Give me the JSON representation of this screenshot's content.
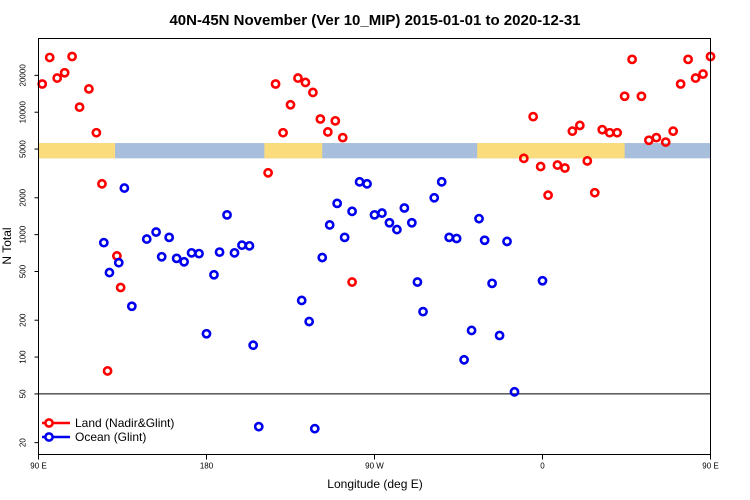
{
  "chart_data": {
    "type": "scatter",
    "title": "40N-45N November (Ver 10_MIP)   2015-01-01 to 2020-12-31",
    "xlabel": "Longitude (deg E)",
    "ylabel": "N Total",
    "y_scale": "log",
    "xlim": [
      90,
      450
    ],
    "ylim": [
      16,
      40000
    ],
    "x_ticks": [
      {
        "value": 90,
        "label": "90 E"
      },
      {
        "value": 180,
        "label": "180"
      },
      {
        "value": 270,
        "label": "90 W"
      },
      {
        "value": 360,
        "label": "0"
      },
      {
        "value": 450,
        "label": "90 E"
      },
      {
        "value": 540,
        "label": "180"
      }
    ],
    "y_ticks": [
      {
        "value": 20,
        "label": "20"
      },
      {
        "value": 50,
        "label": "50"
      },
      {
        "value": 100,
        "label": "100"
      },
      {
        "value": 200,
        "label": "200"
      },
      {
        "value": 500,
        "label": "500"
      },
      {
        "value": 1000,
        "label": "1000"
      },
      {
        "value": 2000,
        "label": "2000"
      },
      {
        "value": 5000,
        "label": "5000"
      },
      {
        "value": 10000,
        "label": "10000"
      },
      {
        "value": 20000,
        "label": "20000"
      }
    ],
    "hline": 50,
    "land_mask_band": {
      "y_range": [
        4200,
        5600
      ],
      "ocean_color": "#a7bedc",
      "land_color": "#fadc7c",
      "land_segments": [
        [
          90,
          131
        ],
        [
          211,
          242
        ],
        [
          325,
          404
        ],
        [
          470,
          489
        ]
      ]
    },
    "legend_position": "bottom-left",
    "series": [
      {
        "name": "Land (Nadir&Glint)",
        "color": "#ff0000",
        "points": [
          [
            92,
            17000
          ],
          [
            96,
            28000
          ],
          [
            100,
            19000
          ],
          [
            104,
            21000
          ],
          [
            108,
            28500
          ],
          [
            112,
            11000
          ],
          [
            117,
            15500
          ],
          [
            121,
            6800
          ],
          [
            124,
            2600
          ],
          [
            127,
            77
          ],
          [
            132,
            670
          ],
          [
            134,
            370
          ],
          [
            213,
            3200
          ],
          [
            217,
            17000
          ],
          [
            221,
            6800
          ],
          [
            225,
            11500
          ],
          [
            229,
            19000
          ],
          [
            233,
            17500
          ],
          [
            237,
            14500
          ],
          [
            241,
            8800
          ],
          [
            245,
            6900
          ],
          [
            249,
            8500
          ],
          [
            253,
            6200
          ],
          [
            258,
            410
          ],
          [
            350,
            4200
          ],
          [
            355,
            9200
          ],
          [
            359,
            3600
          ],
          [
            363,
            2100
          ],
          [
            368,
            3700
          ],
          [
            372,
            3500
          ],
          [
            376,
            7000
          ],
          [
            380,
            7800
          ],
          [
            384,
            4000
          ],
          [
            388,
            2200
          ],
          [
            392,
            7200
          ],
          [
            396,
            6800
          ],
          [
            400,
            6800
          ],
          [
            404,
            13500
          ],
          [
            408,
            27000
          ],
          [
            413,
            13500
          ],
          [
            417,
            5900
          ],
          [
            421,
            6200
          ],
          [
            426,
            5700
          ],
          [
            430,
            7000
          ],
          [
            434,
            17000
          ],
          [
            438,
            27000
          ],
          [
            442,
            19000
          ],
          [
            446,
            20500
          ],
          [
            450,
            28500
          ]
        ]
      },
      {
        "name": "Ocean (Glint)",
        "color": "#0000ee",
        "points": [
          [
            125,
            860
          ],
          [
            128,
            490
          ],
          [
            133,
            590
          ],
          [
            136,
            2400
          ],
          [
            140,
            260
          ],
          [
            148,
            920
          ],
          [
            153,
            1050
          ],
          [
            156,
            660
          ],
          [
            160,
            950
          ],
          [
            164,
            640
          ],
          [
            168,
            600
          ],
          [
            172,
            710
          ],
          [
            176,
            700
          ],
          [
            180,
            155
          ],
          [
            184,
            470
          ],
          [
            187,
            720
          ],
          [
            191,
            1450
          ],
          [
            195,
            710
          ],
          [
            199,
            820
          ],
          [
            203,
            810
          ],
          [
            205,
            125
          ],
          [
            208,
            27
          ],
          [
            231,
            290
          ],
          [
            235,
            195
          ],
          [
            238,
            26
          ],
          [
            242,
            650
          ],
          [
            246,
            1200
          ],
          [
            250,
            1800
          ],
          [
            254,
            950
          ],
          [
            258,
            1550
          ],
          [
            262,
            2700
          ],
          [
            266,
            2600
          ],
          [
            270,
            1450
          ],
          [
            274,
            1500
          ],
          [
            278,
            1250
          ],
          [
            282,
            1100
          ],
          [
            286,
            1650
          ],
          [
            290,
            1250
          ],
          [
            293,
            410
          ],
          [
            296,
            235
          ],
          [
            302,
            2000
          ],
          [
            306,
            2700
          ],
          [
            310,
            950
          ],
          [
            314,
            930
          ],
          [
            318,
            95
          ],
          [
            322,
            165
          ],
          [
            326,
            1350
          ],
          [
            329,
            900
          ],
          [
            333,
            400
          ],
          [
            337,
            150
          ],
          [
            341,
            880
          ],
          [
            345,
            52
          ],
          [
            360,
            420
          ]
        ]
      }
    ]
  }
}
